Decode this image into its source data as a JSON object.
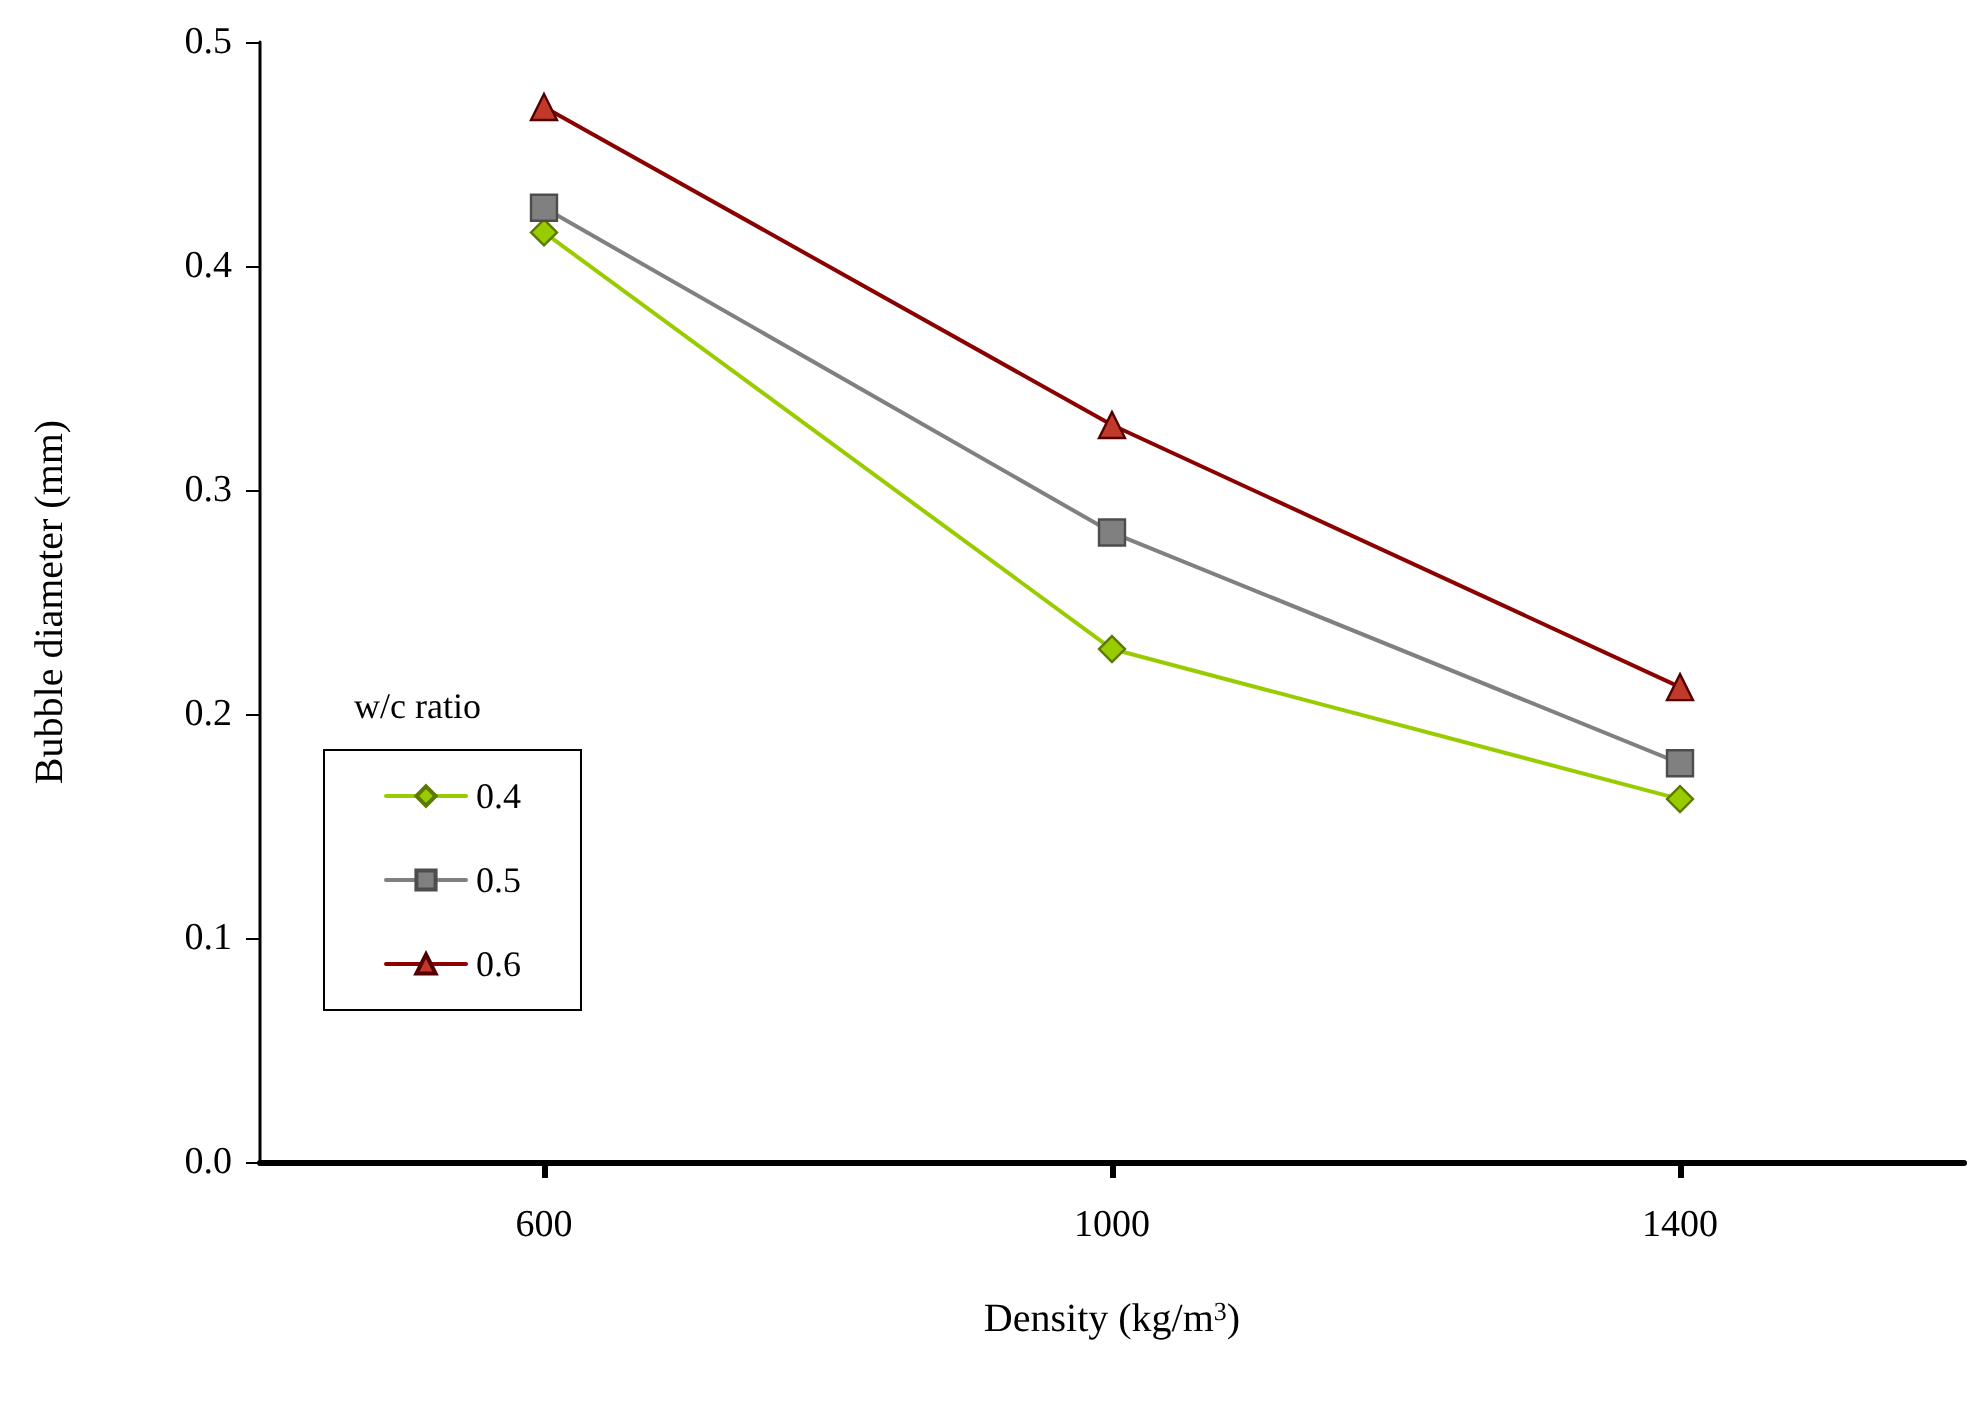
{
  "chart_data": {
    "type": "line",
    "xlabel": "Density (kg/m$^{3}$)",
    "ylabel": "Bubble diameter (mm)",
    "legend_title": "w/c ratio",
    "categories": [
      "600",
      "1000",
      "1400"
    ],
    "series": [
      {
        "name": "0.4",
        "color": "#99cc00",
        "marker": "diamond",
        "values": [
          0.415,
          0.229,
          0.162
        ]
      },
      {
        "name": "0.5",
        "color": "#808080",
        "marker": "square",
        "values": [
          0.426,
          0.281,
          0.178
        ]
      },
      {
        "name": "0.6",
        "color": "#8b0000",
        "marker": "triangle",
        "values": [
          0.471,
          0.329,
          0.212
        ]
      }
    ],
    "ylim": [
      0,
      0.5
    ],
    "yticks": [
      {
        "value": 0,
        "label": "0.0"
      },
      0.1,
      0.2,
      0.3,
      0.4,
      0.5
    ],
    "grid": false,
    "legend": "left",
    "line_style": "solid"
  }
}
